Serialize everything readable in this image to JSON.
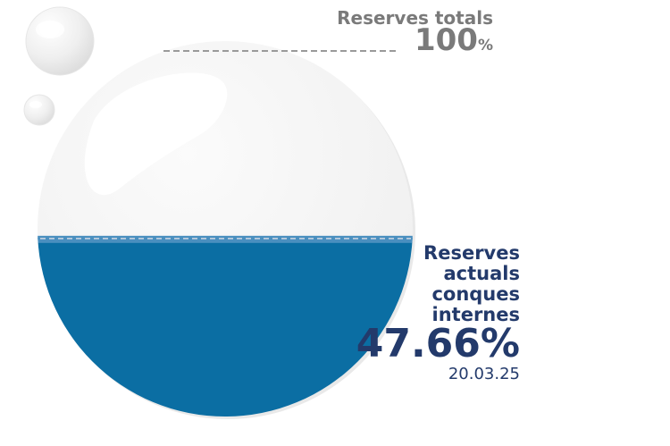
{
  "chart_data": {
    "type": "gauge",
    "title": "",
    "total": {
      "label": "Reserves totals",
      "value": 100,
      "value_text": "100",
      "unit": "%"
    },
    "current": {
      "label": "Reserves actuals conques internes",
      "value": 47.66,
      "value_text": "47.66%",
      "date": "20.03.25"
    },
    "colors": {
      "water": "#0b6ea3",
      "water_surface": "#4a8fbf",
      "empty": "#f4f4f4",
      "total_text": "#7a7a7a",
      "current_text": "#233a6b"
    }
  }
}
